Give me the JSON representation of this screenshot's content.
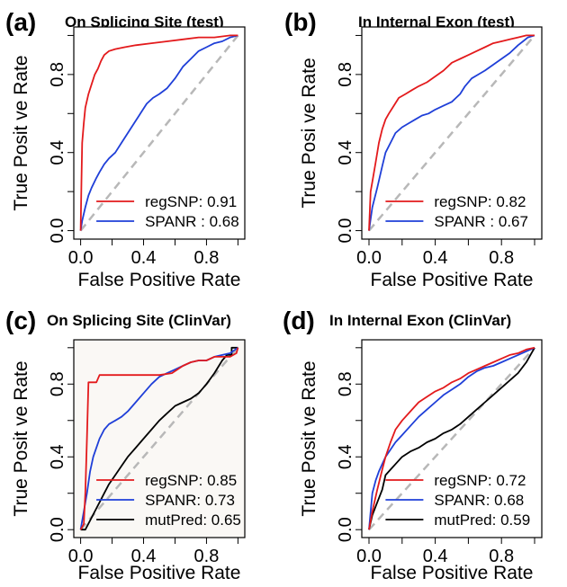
{
  "chart_data": [
    {
      "type": "line",
      "panel_label": "(a)",
      "title": "On Splicing Site (test)",
      "xlabel": "False Positive Rate",
      "ylabel": "True Posit ve Rate",
      "xlim": [
        0,
        1
      ],
      "ylim": [
        0,
        1
      ],
      "xticks": [
        "0.0",
        "0.4",
        "0.8"
      ],
      "yticks": [
        "0.0",
        "0.4",
        "0.8"
      ],
      "legend_position": "bottom-right",
      "series": [
        {
          "name": "regSNP",
          "auc": "0.91",
          "color": "#e31a1c",
          "x": [
            0,
            0.005,
            0.01,
            0.02,
            0.03,
            0.05,
            0.07,
            0.09,
            0.11,
            0.13,
            0.15,
            0.18,
            0.22,
            0.28,
            0.35,
            0.45,
            0.55,
            0.65,
            0.75,
            0.85,
            0.95,
            1.0
          ],
          "y": [
            0,
            0.25,
            0.45,
            0.55,
            0.63,
            0.7,
            0.75,
            0.8,
            0.83,
            0.87,
            0.9,
            0.92,
            0.93,
            0.94,
            0.95,
            0.96,
            0.97,
            0.98,
            0.99,
            0.99,
            1.0,
            1.0
          ]
        },
        {
          "name": "SPANR",
          "auc": "0.68",
          "color": "#1f3fd8",
          "x": [
            0,
            0.01,
            0.03,
            0.05,
            0.07,
            0.1,
            0.12,
            0.15,
            0.18,
            0.22,
            0.26,
            0.3,
            0.34,
            0.38,
            0.42,
            0.46,
            0.5,
            0.55,
            0.6,
            0.65,
            0.7,
            0.75,
            0.8,
            0.85,
            0.9,
            0.95,
            1.0
          ],
          "y": [
            0,
            0.05,
            0.12,
            0.18,
            0.22,
            0.27,
            0.3,
            0.34,
            0.37,
            0.4,
            0.45,
            0.5,
            0.55,
            0.6,
            0.65,
            0.68,
            0.7,
            0.73,
            0.78,
            0.84,
            0.88,
            0.92,
            0.94,
            0.96,
            0.97,
            0.99,
            1.0
          ]
        }
      ]
    },
    {
      "type": "line",
      "panel_label": "(b)",
      "title": "In Internal Exon (test)",
      "xlabel": "False Positive Rate",
      "ylabel": "True Posi ve Rate",
      "xlim": [
        0,
        1
      ],
      "ylim": [
        0,
        1
      ],
      "xticks": [
        "0.0",
        "0.4",
        "0.8"
      ],
      "yticks": [
        "0.0",
        "0.4",
        "0.8"
      ],
      "legend_position": "bottom-right",
      "series": [
        {
          "name": "regSNP",
          "auc": "0.82",
          "color": "#e31a1c",
          "x": [
            0,
            0.01,
            0.02,
            0.04,
            0.06,
            0.08,
            0.1,
            0.12,
            0.15,
            0.18,
            0.22,
            0.26,
            0.3,
            0.35,
            0.4,
            0.45,
            0.5,
            0.55,
            0.6,
            0.65,
            0.7,
            0.75,
            0.8,
            0.85,
            0.9,
            0.95,
            1.0
          ],
          "y": [
            0,
            0.2,
            0.25,
            0.35,
            0.45,
            0.52,
            0.57,
            0.6,
            0.64,
            0.68,
            0.7,
            0.72,
            0.74,
            0.76,
            0.79,
            0.82,
            0.86,
            0.88,
            0.9,
            0.92,
            0.94,
            0.96,
            0.97,
            0.98,
            0.99,
            1.0,
            1.0
          ]
        },
        {
          "name": "SPANR",
          "auc": "0.67",
          "color": "#1f3fd8",
          "x": [
            0,
            0.02,
            0.05,
            0.08,
            0.1,
            0.13,
            0.16,
            0.2,
            0.24,
            0.28,
            0.32,
            0.36,
            0.4,
            0.45,
            0.5,
            0.55,
            0.58,
            0.62,
            0.66,
            0.7,
            0.75,
            0.8,
            0.85,
            0.9,
            0.93,
            0.96,
            1.0
          ],
          "y": [
            0,
            0.12,
            0.22,
            0.33,
            0.4,
            0.45,
            0.5,
            0.53,
            0.55,
            0.57,
            0.59,
            0.6,
            0.62,
            0.64,
            0.66,
            0.7,
            0.74,
            0.78,
            0.8,
            0.82,
            0.85,
            0.88,
            0.91,
            0.95,
            0.97,
            0.99,
            1.0
          ]
        }
      ]
    },
    {
      "type": "line",
      "panel_label": "(c)",
      "title": "On Splicing Site (ClinVar)",
      "xlabel": "False Positive Rate",
      "ylabel": "True Posit ve Rate",
      "xlim": [
        0,
        1
      ],
      "ylim": [
        0,
        1
      ],
      "xticks": [
        "0.0",
        "0.4",
        "0.8"
      ],
      "yticks": [
        "0.0",
        "0.4",
        "0.8"
      ],
      "legend_position": "bottom-right",
      "series": [
        {
          "name": "regSNP",
          "auc": "0.85",
          "color": "#e31a1c",
          "x": [
            0,
            0.02,
            0.03,
            0.04,
            0.05,
            0.06,
            0.08,
            0.1,
            0.12,
            0.15,
            0.2,
            0.3,
            0.4,
            0.5,
            0.58,
            0.65,
            0.7,
            0.75,
            0.8,
            0.85,
            0.9,
            0.95,
            0.99,
            1.0
          ],
          "y": [
            0,
            0.03,
            0.2,
            0.5,
            0.81,
            0.81,
            0.81,
            0.81,
            0.85,
            0.85,
            0.85,
            0.85,
            0.85,
            0.85,
            0.86,
            0.9,
            0.92,
            0.93,
            0.93,
            0.95,
            0.95,
            0.95,
            0.97,
            1.0
          ]
        },
        {
          "name": "SPANR",
          "auc": "0.73",
          "color": "#1f3fd8",
          "x": [
            0,
            0.02,
            0.04,
            0.06,
            0.08,
            0.1,
            0.12,
            0.15,
            0.18,
            0.22,
            0.26,
            0.3,
            0.35,
            0.4,
            0.45,
            0.5,
            0.55,
            0.6,
            0.65,
            0.7,
            0.75,
            0.8,
            0.85,
            0.9,
            0.95,
            1.0
          ],
          "y": [
            0,
            0.1,
            0.2,
            0.32,
            0.4,
            0.45,
            0.5,
            0.55,
            0.58,
            0.6,
            0.62,
            0.65,
            0.7,
            0.75,
            0.8,
            0.84,
            0.86,
            0.88,
            0.9,
            0.92,
            0.93,
            0.93,
            0.95,
            0.96,
            0.97,
            1.0
          ]
        },
        {
          "name": "mutPred",
          "auc": "0.65",
          "color": "#000000",
          "x": [
            0,
            0.03,
            0.06,
            0.09,
            0.12,
            0.15,
            0.18,
            0.22,
            0.26,
            0.3,
            0.35,
            0.4,
            0.45,
            0.5,
            0.55,
            0.6,
            0.65,
            0.7,
            0.75,
            0.8,
            0.85,
            0.9,
            0.93,
            0.96,
            0.96,
            1.0
          ],
          "y": [
            0,
            0.0,
            0.05,
            0.1,
            0.15,
            0.2,
            0.25,
            0.3,
            0.35,
            0.4,
            0.45,
            0.5,
            0.55,
            0.6,
            0.64,
            0.68,
            0.7,
            0.72,
            0.75,
            0.8,
            0.86,
            0.93,
            0.96,
            0.96,
            1.0,
            1.0
          ]
        }
      ]
    },
    {
      "type": "line",
      "panel_label": "(d)",
      "title": "In Internal Exon (ClinVar)",
      "xlabel": "False Positive Rate",
      "ylabel": "True Posit ve Rate",
      "xlim": [
        0,
        1
      ],
      "ylim": [
        0,
        1
      ],
      "xticks": [
        "0.0",
        "0.4",
        "0.8"
      ],
      "yticks": [
        "0.0",
        "0.4",
        "0.8"
      ],
      "legend_position": "bottom-right",
      "series": [
        {
          "name": "regSNP",
          "auc": "0.72",
          "color": "#e31a1c",
          "x": [
            0,
            0.02,
            0.05,
            0.08,
            0.1,
            0.13,
            0.16,
            0.2,
            0.25,
            0.3,
            0.35,
            0.4,
            0.45,
            0.5,
            0.55,
            0.6,
            0.65,
            0.7,
            0.75,
            0.8,
            0.85,
            0.9,
            0.95,
            1.0
          ],
          "y": [
            0,
            0.1,
            0.22,
            0.33,
            0.4,
            0.48,
            0.55,
            0.6,
            0.65,
            0.7,
            0.73,
            0.76,
            0.78,
            0.81,
            0.83,
            0.86,
            0.88,
            0.9,
            0.92,
            0.94,
            0.96,
            0.97,
            0.99,
            1.0
          ]
        },
        {
          "name": "SPANR",
          "auc": "0.68",
          "color": "#1f3fd8",
          "x": [
            0,
            0.02,
            0.04,
            0.06,
            0.08,
            0.1,
            0.13,
            0.16,
            0.2,
            0.25,
            0.3,
            0.35,
            0.4,
            0.45,
            0.5,
            0.55,
            0.6,
            0.65,
            0.7,
            0.75,
            0.8,
            0.85,
            0.9,
            0.95,
            1.0
          ],
          "y": [
            0,
            0.2,
            0.27,
            0.32,
            0.36,
            0.4,
            0.44,
            0.48,
            0.52,
            0.57,
            0.62,
            0.66,
            0.7,
            0.74,
            0.77,
            0.8,
            0.84,
            0.87,
            0.89,
            0.9,
            0.92,
            0.94,
            0.96,
            0.98,
            1.0
          ]
        },
        {
          "name": "mutPred",
          "auc": "0.59",
          "color": "#000000",
          "x": [
            0,
            0.02,
            0.05,
            0.08,
            0.1,
            0.13,
            0.16,
            0.2,
            0.25,
            0.3,
            0.35,
            0.4,
            0.45,
            0.5,
            0.55,
            0.6,
            0.65,
            0.7,
            0.75,
            0.8,
            0.85,
            0.9,
            0.95,
            1.0
          ],
          "y": [
            0,
            0.08,
            0.15,
            0.22,
            0.3,
            0.33,
            0.36,
            0.4,
            0.43,
            0.45,
            0.48,
            0.5,
            0.53,
            0.55,
            0.58,
            0.62,
            0.66,
            0.7,
            0.74,
            0.78,
            0.82,
            0.86,
            0.92,
            1.0
          ]
        }
      ]
    }
  ]
}
